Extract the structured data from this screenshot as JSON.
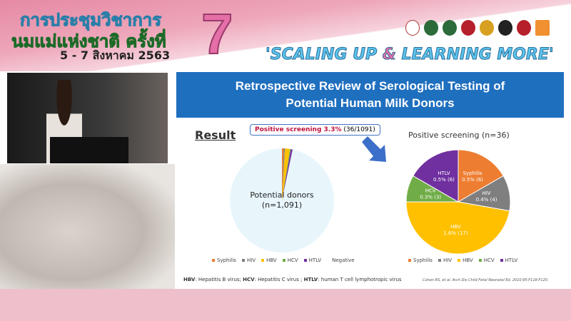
{
  "banner": {
    "title_line1": "การประชุมวิชาการ",
    "title_line2": "นมแม่แห่งชาติ ครั้งที่",
    "number": "7",
    "dates": "5 - 7 สิงหาคม 2563",
    "slogan_a": "'SCALING UP ",
    "slogan_amp": "&",
    "slogan_b": " LEARNING MORE'"
  },
  "slide": {
    "title_line1": "Retrospective Review of Serological Testing of",
    "title_line2": "Potential Human Milk Donors",
    "result_label": "Result",
    "callout_bold": "Positive screening 3.3%",
    "callout_rest": " (36/1091)",
    "footnote": [
      {
        "b": "HBV",
        "t": ": Hepatitis B virus; "
      },
      {
        "b": "HCV",
        "t": ": Hepatitis C virus ; "
      },
      {
        "b": "HTLV",
        "t": ": human T cell lymphotropic virus"
      }
    ],
    "citation": "Cohen RS, et al. Arch Dis Child Fetal Neonatal Ed. 2010;95:F118-F120."
  },
  "colors": {
    "Syphilis": "#ED7D31",
    "HIV": "#7F7F7F",
    "HBV": "#FFC000",
    "HCV": "#70AD47",
    "HTLV": "#7030A0",
    "Negative": "#E8F6FC",
    "title_bar": "#1f6fbf"
  },
  "chart_data": [
    {
      "type": "pie",
      "title": "",
      "center_label": [
        "Potential donors",
        "(n=1,091)"
      ],
      "categories": [
        "Syphilis",
        "HIV",
        "HBV",
        "HCV",
        "HTLV",
        "Negative"
      ],
      "values": [
        6,
        4,
        17,
        3,
        6,
        1055
      ],
      "legend": "bottom"
    },
    {
      "type": "pie",
      "title": "Positive screening (n=36)",
      "categories": [
        "Syphilis",
        "HIV",
        "HBV",
        "HCV",
        "HTLV"
      ],
      "values": [
        6,
        4,
        17,
        3,
        6
      ],
      "labels": [
        "0.5% (6)",
        "0.4% (4)",
        "1.6% (17)",
        "0.3% (3)",
        "0.5% (6)"
      ],
      "legend": "bottom"
    }
  ]
}
